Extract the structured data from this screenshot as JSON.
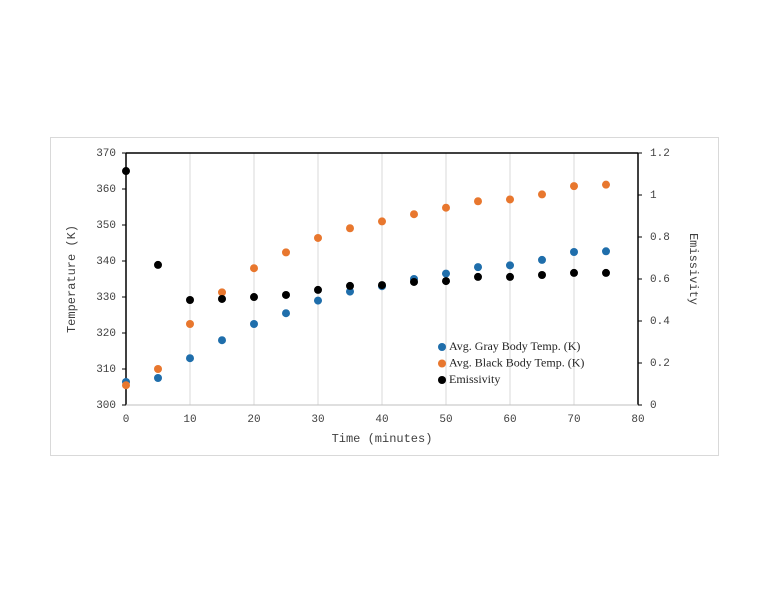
{
  "chart_data": {
    "type": "scatter",
    "x_label": "Time (minutes)",
    "y_label": "Temperature (K)",
    "y2_label": "Emissivity",
    "x": [
      0,
      5,
      10,
      15,
      20,
      25,
      30,
      35,
      40,
      45,
      50,
      55,
      60,
      65,
      70,
      75
    ],
    "series": [
      {
        "name": "Avg. Gray Body Temp. (K)",
        "color": "#1f6eab",
        "values": [
          306.4,
          307.5,
          313,
          318,
          322.5,
          325.5,
          329,
          331.5,
          333,
          335,
          336.5,
          338.3,
          338.8,
          340.3,
          342.5,
          342.7
        ]
      },
      {
        "name": "Avg. Black Body Temp. (K)",
        "color": "#e8772e",
        "values": [
          305.5,
          310,
          322.5,
          331.3,
          338,
          342.4,
          346.4,
          349.1,
          351,
          353,
          354.8,
          356.6,
          357.1,
          358.5,
          360.8,
          361.2
        ]
      },
      {
        "name": "Emissivity",
        "color": "#000000",
        "axis": "y2",
        "values": [
          1.114,
          0.667,
          0.5,
          0.505,
          0.514,
          0.524,
          0.548,
          0.567,
          0.571,
          0.586,
          0.59,
          0.61,
          0.61,
          0.619,
          0.629,
          0.629
        ]
      }
    ],
    "xlim": [
      0,
      80
    ],
    "xticks": [
      0,
      10,
      20,
      30,
      40,
      50,
      60,
      70,
      80
    ],
    "ylim": [
      300,
      370
    ],
    "yticks": [
      300,
      310,
      320,
      330,
      340,
      350,
      360,
      370
    ],
    "y2lim": [
      0,
      1.2
    ],
    "y2ticks": [
      0,
      0.2,
      0.4,
      0.6,
      0.8,
      1,
      1.2
    ],
    "grid": "x",
    "legend": "bottom-right"
  }
}
